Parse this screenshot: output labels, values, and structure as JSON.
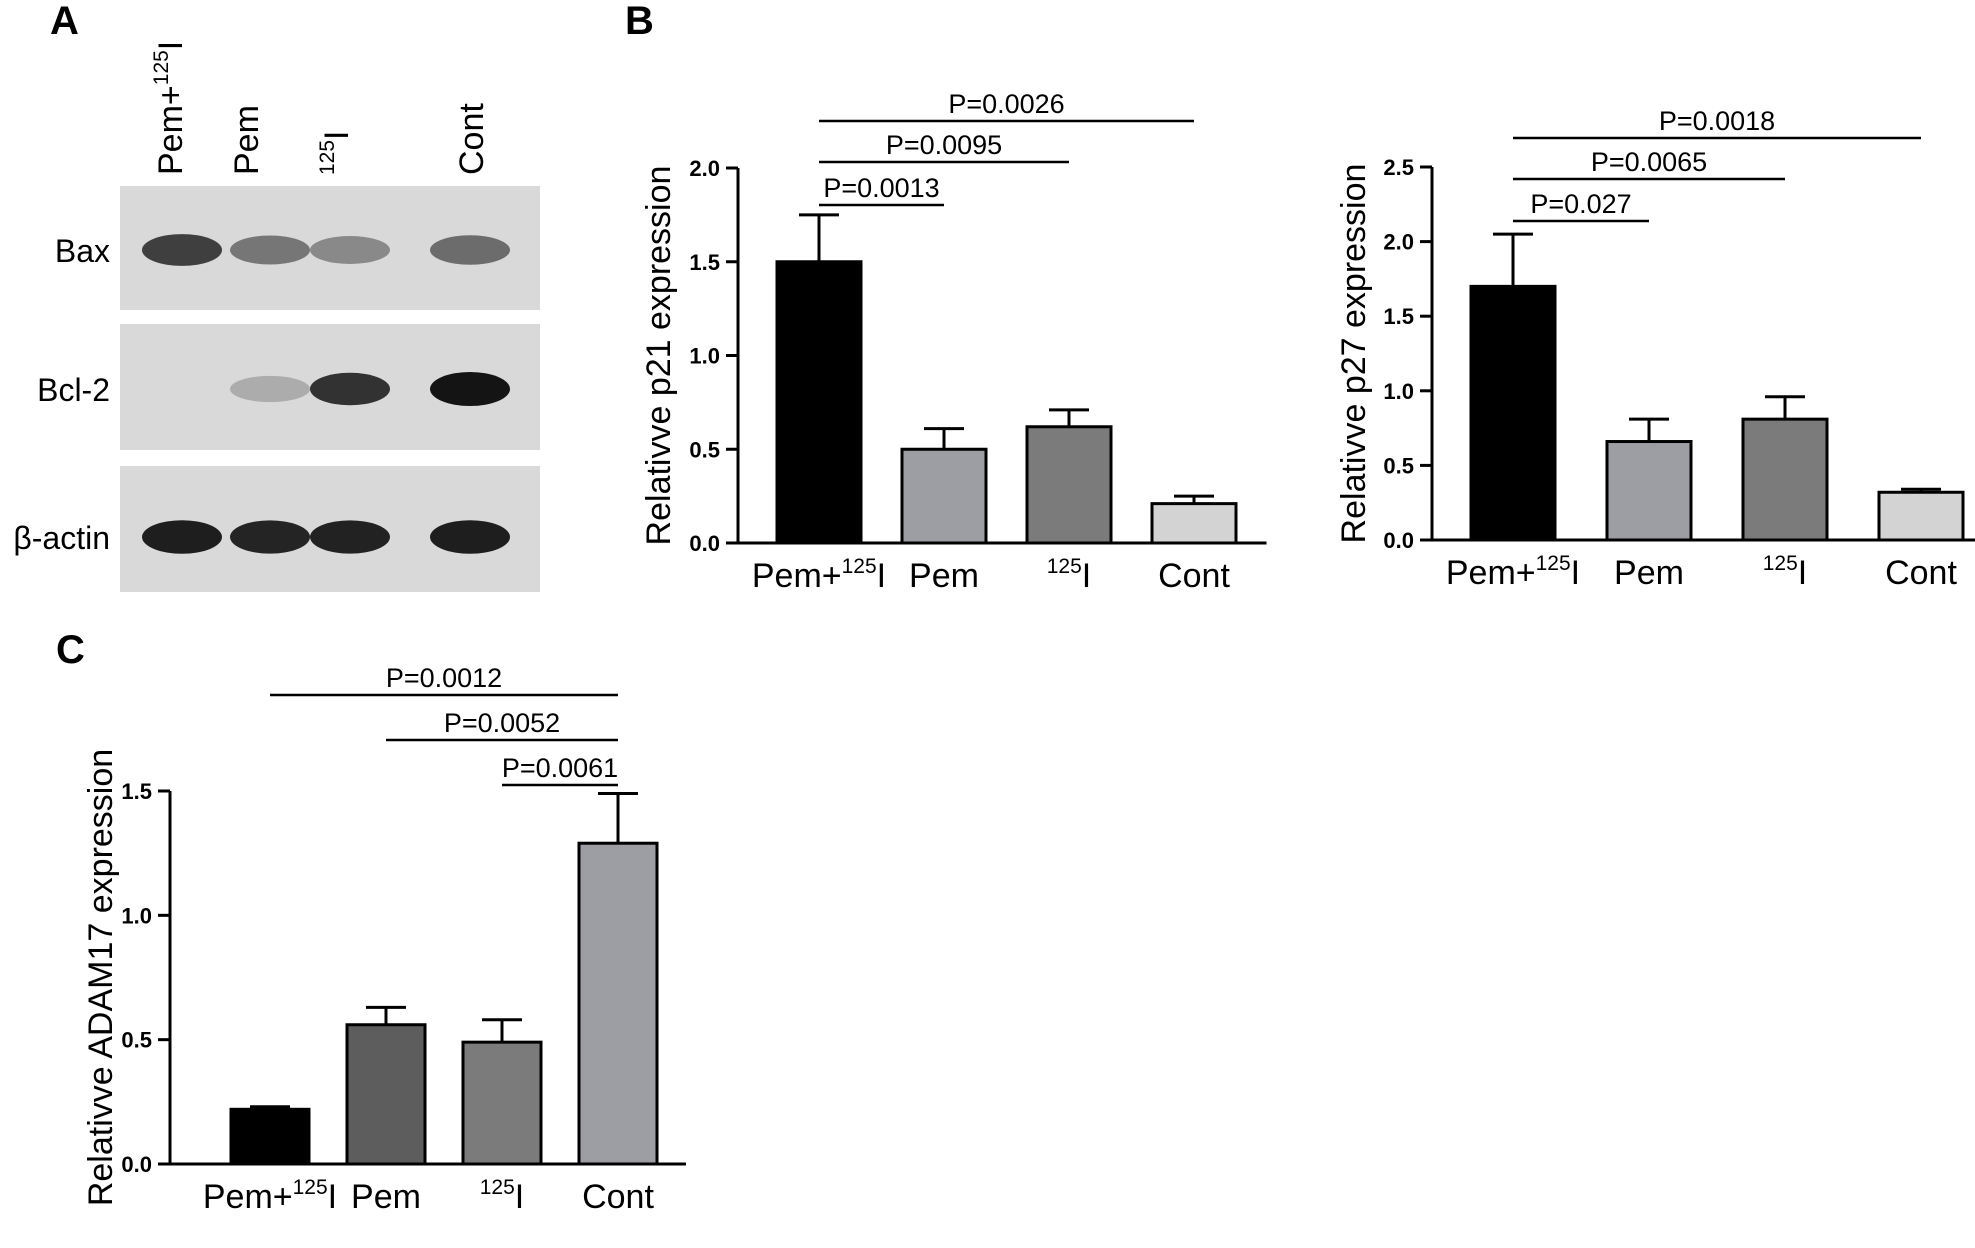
{
  "panels": {
    "a": {
      "letter": "A",
      "lanes": [
        {
          "label": "Pem+",
          "sup": "125",
          "tail": "I"
        },
        {
          "label": "Pem",
          "sup": "",
          "tail": ""
        },
        {
          "label": "",
          "sup": "125",
          "tail": "I"
        },
        {
          "label": "Cont",
          "sup": "",
          "tail": ""
        }
      ],
      "blots": [
        {
          "name": "Bax",
          "intensity": [
            0.78,
            0.5,
            0.4,
            0.55
          ]
        },
        {
          "name": "Bcl-2",
          "intensity": [
            0.0,
            0.22,
            0.85,
            1.0
          ]
        },
        {
          "name": "β-actin",
          "intensity": [
            0.95,
            0.92,
            0.93,
            0.95
          ]
        }
      ]
    },
    "b": {
      "letter": "B"
    },
    "c": {
      "letter": "C"
    }
  },
  "chart_data": [
    {
      "type": "bar",
      "categories": [
        {
          "base": "Pem+",
          "sup": "125",
          "tail": "I"
        },
        {
          "base": "Pem",
          "sup": "",
          "tail": ""
        },
        {
          "base": "",
          "sup": "125",
          "tail": "I"
        },
        {
          "base": "Cont",
          "sup": "",
          "tail": ""
        }
      ],
      "values": [
        1.5,
        0.5,
        0.62,
        0.21
      ],
      "errors": [
        0.25,
        0.11,
        0.09,
        0.04
      ],
      "colors": [
        "#000000",
        "#9d9da4",
        "#7b7b7b",
        "#d3d3d3"
      ],
      "ylabel": "Relativve p21 expression",
      "ylim": [
        0,
        2.0
      ],
      "yticks": [
        "0.0",
        "0.5",
        "1.0",
        "1.5",
        "2.0"
      ],
      "comparisons": [
        {
          "from": 0,
          "to": 3,
          "label": "P=0.0026"
        },
        {
          "from": 0,
          "to": 2,
          "label": "P=0.0095"
        },
        {
          "from": 0,
          "to": 1,
          "label": "P=0.0013"
        }
      ]
    },
    {
      "type": "bar",
      "categories": [
        {
          "base": "Pem+",
          "sup": "125",
          "tail": "I"
        },
        {
          "base": "Pem",
          "sup": "",
          "tail": ""
        },
        {
          "base": "",
          "sup": "125",
          "tail": "I"
        },
        {
          "base": "Cont",
          "sup": "",
          "tail": ""
        }
      ],
      "values": [
        1.7,
        0.66,
        0.81,
        0.32
      ],
      "errors": [
        0.35,
        0.15,
        0.15,
        0.02
      ],
      "colors": [
        "#000000",
        "#9d9da4",
        "#7b7b7b",
        "#d3d3d3"
      ],
      "ylabel": "Relativve p27 expression",
      "ylim": [
        0,
        2.5
      ],
      "yticks": [
        "0.0",
        "0.5",
        "1.0",
        "1.5",
        "2.0",
        "2.5"
      ],
      "comparisons": [
        {
          "from": 0,
          "to": 3,
          "label": "P=0.0018"
        },
        {
          "from": 0,
          "to": 2,
          "label": "P=0.0065"
        },
        {
          "from": 0,
          "to": 1,
          "label": "P=0.027"
        }
      ]
    },
    {
      "type": "bar",
      "categories": [
        {
          "base": "Pem+",
          "sup": "125",
          "tail": "I"
        },
        {
          "base": "Pem",
          "sup": "",
          "tail": ""
        },
        {
          "base": "",
          "sup": "125",
          "tail": "I"
        },
        {
          "base": "Cont",
          "sup": "",
          "tail": ""
        }
      ],
      "values": [
        0.22,
        0.56,
        0.49,
        1.29
      ],
      "errors": [
        0.01,
        0.07,
        0.09,
        0.2
      ],
      "colors": [
        "#000000",
        "#5d5d5d",
        "#7b7b7b",
        "#9d9da4"
      ],
      "ylabel": "Relativve ADAM17 expression",
      "ylim": [
        0,
        1.5
      ],
      "yticks": [
        "0.0",
        "0.5",
        "1.0",
        "1.5"
      ],
      "comparisons": [
        {
          "from": 0,
          "to": 3,
          "label": "P=0.0012"
        },
        {
          "from": 1,
          "to": 3,
          "label": "P=0.0052"
        },
        {
          "from": 2,
          "to": 3,
          "label": "P=0.0061"
        }
      ]
    }
  ]
}
